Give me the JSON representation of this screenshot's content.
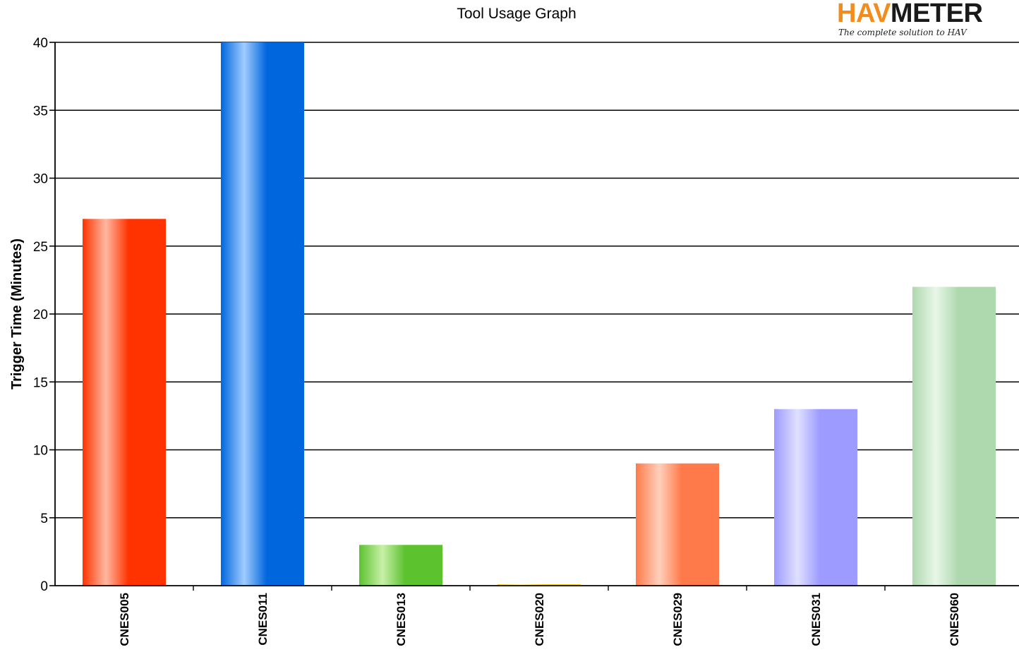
{
  "logo": {
    "brand_left": "HAV",
    "brand_right": "METER",
    "tagline": "The complete solution to HAV",
    "colors": {
      "brand_left": "#f28c1c",
      "brand_right": "#1a1a1a"
    }
  },
  "chart_data": {
    "type": "bar",
    "title": "Tool Usage Graph",
    "xlabel": "",
    "ylabel": "Trigger Time (Minutes)",
    "ylim": [
      0,
      40
    ],
    "yticks": [
      0,
      5,
      10,
      15,
      20,
      25,
      30,
      35,
      40
    ],
    "grid": true,
    "categories": [
      "CNES005",
      "CNES011",
      "CNES013",
      "CNES020",
      "CNES029",
      "CNES031",
      "CNES060"
    ],
    "values": [
      27,
      40,
      3,
      0.1,
      9,
      13,
      22
    ],
    "bar_colors": [
      {
        "edge": "#ff3300",
        "highlight": "#ffb8a0"
      },
      {
        "edge": "#0066dd",
        "highlight": "#a0ccff"
      },
      {
        "edge": "#5cc22e",
        "highlight": "#c8f0a8"
      },
      {
        "edge": "#f5d000",
        "highlight": "#fff4a0"
      },
      {
        "edge": "#ff7a4a",
        "highlight": "#ffd0bc"
      },
      {
        "edge": "#9d9bff",
        "highlight": "#e0e0ff"
      },
      {
        "edge": "#aed8ae",
        "highlight": "#e8f6e8"
      }
    ]
  }
}
